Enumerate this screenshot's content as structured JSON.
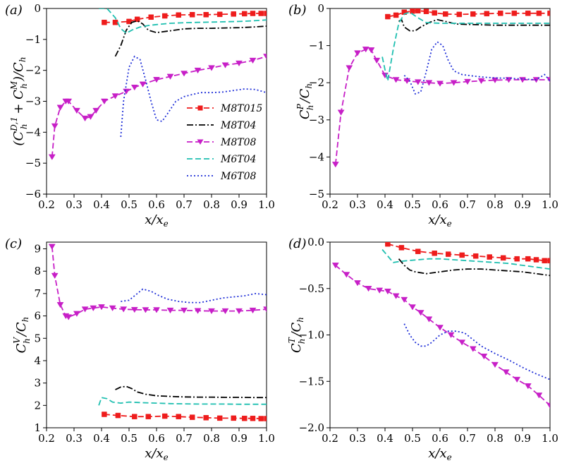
{
  "series_styles": {
    "M8T015": {
      "color": "#ee1c1c",
      "dash": "8,4",
      "marker": "square"
    },
    "M8T04": {
      "color": "#000000",
      "dash": "9,3,2,3",
      "marker": "none"
    },
    "M8T08": {
      "color": "#c71fc7",
      "dash": "8,4",
      "marker": "triangle-down"
    },
    "M6T04": {
      "color": "#1fbfb0",
      "dash": "8,4",
      "marker": "none"
    },
    "M6T08": {
      "color": "#1f2fd8",
      "dash": "2,3",
      "marker": "none"
    }
  },
  "legend": [
    "M8T015",
    "M8T04",
    "M8T08",
    "M6T04",
    "M6T08"
  ],
  "chart_data": [
    {
      "type": "line",
      "panel": "(a)",
      "xlabel": "x/x_e",
      "ylabel": "(C_h^{D,1} + C_h^{M})/C_h",
      "xlim": [
        0.2,
        1.0
      ],
      "ylim": [
        -6,
        0
      ],
      "xticks": [
        "0.2",
        "0.3",
        "0.4",
        "0.5",
        "0.6",
        "0.7",
        "0.8",
        "0.9",
        "1.0"
      ],
      "yticks": [
        "−6",
        "−5",
        "−4",
        "−3",
        "−2",
        "−1",
        "0"
      ],
      "legend_position": "center-right",
      "series": [
        {
          "name": "M8T015",
          "x": [
            0.41,
            0.45,
            0.5,
            0.53,
            0.58,
            0.63,
            0.68,
            0.73,
            0.78,
            0.83,
            0.88,
            0.92,
            0.95,
            0.98,
            1.0
          ],
          "y": [
            -0.45,
            -0.45,
            -0.42,
            -0.35,
            -0.28,
            -0.24,
            -0.21,
            -0.2,
            -0.2,
            -0.19,
            -0.18,
            -0.17,
            -0.16,
            -0.16,
            -0.16
          ]
        },
        {
          "name": "M8T04",
          "x": [
            0.45,
            0.47,
            0.49,
            0.51,
            0.53,
            0.55,
            0.57,
            0.6,
            0.65,
            0.7,
            0.75,
            0.8,
            0.85,
            0.9,
            0.95,
            1.0
          ],
          "y": [
            -1.55,
            -1.2,
            -0.7,
            -0.45,
            -0.4,
            -0.5,
            -0.7,
            -0.78,
            -0.72,
            -0.66,
            -0.64,
            -0.64,
            -0.63,
            -0.62,
            -0.6,
            -0.57
          ]
        },
        {
          "name": "M8T08",
          "x": [
            0.22,
            0.23,
            0.25,
            0.27,
            0.28,
            0.31,
            0.34,
            0.36,
            0.38,
            0.41,
            0.45,
            0.49,
            0.52,
            0.55,
            0.6,
            0.65,
            0.7,
            0.75,
            0.8,
            0.85,
            0.9,
            0.95,
            1.0
          ],
          "y": [
            -4.8,
            -3.8,
            -3.2,
            -3.0,
            -3.0,
            -3.3,
            -3.55,
            -3.5,
            -3.3,
            -3.0,
            -2.83,
            -2.68,
            -2.55,
            -2.45,
            -2.3,
            -2.2,
            -2.1,
            -2.0,
            -1.92,
            -1.83,
            -1.77,
            -1.68,
            -1.55
          ]
        },
        {
          "name": "M6T04",
          "x": [
            0.39,
            0.42,
            0.45,
            0.47,
            0.49,
            0.51,
            0.54,
            0.57,
            0.6,
            0.65,
            0.7,
            0.75,
            0.8,
            0.85,
            0.9,
            0.95,
            1.0
          ],
          "y": [
            0.0,
            0.0,
            -0.3,
            -0.65,
            -0.8,
            -0.7,
            -0.6,
            -0.55,
            -0.52,
            -0.48,
            -0.46,
            -0.45,
            -0.44,
            -0.43,
            -0.42,
            -0.4,
            -0.37
          ]
        },
        {
          "name": "M6T08",
          "x": [
            0.47,
            0.48,
            0.5,
            0.52,
            0.54,
            0.56,
            0.58,
            0.6,
            0.62,
            0.64,
            0.67,
            0.7,
            0.73,
            0.76,
            0.8,
            0.84,
            0.88,
            0.92,
            0.96,
            1.0
          ],
          "y": [
            -4.15,
            -3.0,
            -1.9,
            -1.55,
            -1.65,
            -2.3,
            -3.0,
            -3.6,
            -3.65,
            -3.4,
            -3.0,
            -2.85,
            -2.78,
            -2.72,
            -2.72,
            -2.7,
            -2.65,
            -2.6,
            -2.62,
            -2.72
          ]
        }
      ]
    },
    {
      "type": "line",
      "panel": "(b)",
      "xlabel": "x/x_e",
      "ylabel": "C_h^{P}/C_h",
      "xlim": [
        0.2,
        1.0
      ],
      "ylim": [
        -5,
        0
      ],
      "xticks": [
        "0.2",
        "0.3",
        "0.4",
        "0.5",
        "0.6",
        "0.7",
        "0.8",
        "0.9",
        "1.0"
      ],
      "yticks": [
        "−5",
        "−4",
        "−3",
        "−2",
        "−1",
        "0"
      ],
      "series": [
        {
          "name": "M8T015",
          "x": [
            0.41,
            0.44,
            0.47,
            0.5,
            0.52,
            0.55,
            0.58,
            0.62,
            0.67,
            0.72,
            0.77,
            0.82,
            0.87,
            0.92,
            0.96,
            1.0
          ],
          "y": [
            -0.22,
            -0.18,
            -0.1,
            -0.07,
            -0.06,
            -0.08,
            -0.12,
            -0.15,
            -0.16,
            -0.15,
            -0.14,
            -0.13,
            -0.13,
            -0.13,
            -0.13,
            -0.13
          ]
        },
        {
          "name": "M8T04",
          "x": [
            0.45,
            0.46,
            0.47,
            0.49,
            0.51,
            0.53,
            0.56,
            0.59,
            0.62,
            0.66,
            0.7,
            0.75,
            0.8,
            0.85,
            0.9,
            0.95,
            1.0
          ],
          "y": [
            -0.35,
            -0.3,
            -0.5,
            -0.6,
            -0.6,
            -0.5,
            -0.38,
            -0.3,
            -0.35,
            -0.42,
            -0.43,
            -0.44,
            -0.45,
            -0.45,
            -0.45,
            -0.45,
            -0.45
          ]
        },
        {
          "name": "M8T08",
          "x": [
            0.22,
            0.24,
            0.27,
            0.3,
            0.33,
            0.35,
            0.37,
            0.4,
            0.44,
            0.48,
            0.52,
            0.56,
            0.6,
            0.65,
            0.7,
            0.75,
            0.8,
            0.85,
            0.9,
            0.95,
            1.0
          ],
          "y": [
            -4.2,
            -2.8,
            -1.6,
            -1.2,
            -1.1,
            -1.12,
            -1.4,
            -1.8,
            -1.92,
            -1.95,
            -1.98,
            -2.0,
            -2.02,
            -2.0,
            -1.97,
            -1.95,
            -1.93,
            -1.92,
            -1.92,
            -1.92,
            -1.92
          ]
        },
        {
          "name": "M6T04",
          "x": [
            0.39,
            0.4,
            0.41,
            0.43,
            0.45,
            0.47,
            0.49,
            0.52,
            0.55,
            0.6,
            0.65,
            0.7,
            0.75,
            0.8,
            0.85,
            0.9,
            0.95,
            1.0
          ],
          "y": [
            -1.3,
            -1.65,
            -1.95,
            -1.1,
            -0.4,
            -0.15,
            -0.1,
            -0.25,
            -0.38,
            -0.4,
            -0.4,
            -0.4,
            -0.4,
            -0.4,
            -0.4,
            -0.4,
            -0.4,
            -0.4
          ]
        },
        {
          "name": "M6T08",
          "x": [
            0.47,
            0.49,
            0.51,
            0.53,
            0.55,
            0.57,
            0.59,
            0.61,
            0.63,
            0.65,
            0.68,
            0.72,
            0.76,
            0.8,
            0.85,
            0.9,
            0.95,
            0.98,
            1.0
          ],
          "y": [
            -1.8,
            -1.95,
            -2.3,
            -2.25,
            -1.7,
            -1.1,
            -0.9,
            -1.0,
            -1.4,
            -1.68,
            -1.78,
            -1.82,
            -1.85,
            -1.87,
            -1.88,
            -1.9,
            -1.92,
            -1.78,
            -1.95
          ]
        }
      ]
    },
    {
      "type": "line",
      "panel": "(c)",
      "xlabel": "x/x_e",
      "ylabel": "C_h^{V}/C_h",
      "xlim": [
        0.2,
        1.0
      ],
      "ylim": [
        1,
        9.3
      ],
      "xticks": [
        "0.2",
        "0.3",
        "0.4",
        "0.5",
        "0.6",
        "0.7",
        "0.8",
        "0.9",
        "1.0"
      ],
      "yticks": [
        "1",
        "2",
        "3",
        "4",
        "5",
        "6",
        "7",
        "8",
        "9"
      ],
      "series": [
        {
          "name": "M8T015",
          "x": [
            0.41,
            0.46,
            0.52,
            0.57,
            0.63,
            0.68,
            0.73,
            0.78,
            0.83,
            0.88,
            0.92,
            0.95,
            0.98,
            1.0
          ],
          "y": [
            1.6,
            1.55,
            1.5,
            1.5,
            1.52,
            1.5,
            1.47,
            1.45,
            1.43,
            1.43,
            1.42,
            1.42,
            1.41,
            1.41
          ]
        },
        {
          "name": "M8T04",
          "x": [
            0.45,
            0.47,
            0.49,
            0.51,
            0.53,
            0.56,
            0.6,
            0.65,
            0.7,
            0.75,
            0.8,
            0.85,
            0.9,
            0.95,
            1.0
          ],
          "y": [
            2.7,
            2.82,
            2.85,
            2.75,
            2.6,
            2.5,
            2.43,
            2.4,
            2.38,
            2.37,
            2.37,
            2.36,
            2.36,
            2.35,
            2.35
          ]
        },
        {
          "name": "M8T08",
          "x": [
            0.22,
            0.23,
            0.25,
            0.27,
            0.28,
            0.31,
            0.34,
            0.37,
            0.4,
            0.44,
            0.48,
            0.52,
            0.56,
            0.6,
            0.65,
            0.7,
            0.75,
            0.8,
            0.85,
            0.9,
            0.95,
            1.0
          ],
          "y": [
            9.1,
            7.8,
            6.5,
            6.0,
            5.95,
            6.1,
            6.3,
            6.35,
            6.4,
            6.35,
            6.3,
            6.28,
            6.27,
            6.27,
            6.25,
            6.25,
            6.23,
            6.22,
            6.22,
            6.22,
            6.25,
            6.3
          ]
        },
        {
          "name": "M6T04",
          "x": [
            0.39,
            0.4,
            0.42,
            0.44,
            0.47,
            0.5,
            0.55,
            0.6,
            0.65,
            0.7,
            0.75,
            0.8,
            0.85,
            0.9,
            0.95,
            1.0
          ],
          "y": [
            2.0,
            2.35,
            2.3,
            2.15,
            2.1,
            2.15,
            2.12,
            2.1,
            2.08,
            2.07,
            2.06,
            2.06,
            2.06,
            2.05,
            2.05,
            2.05
          ]
        },
        {
          "name": "M6T08",
          "x": [
            0.47,
            0.5,
            0.53,
            0.55,
            0.58,
            0.61,
            0.64,
            0.68,
            0.72,
            0.76,
            0.8,
            0.84,
            0.88,
            0.92,
            0.96,
            1.0
          ],
          "y": [
            6.65,
            6.7,
            7.0,
            7.2,
            7.1,
            6.9,
            6.75,
            6.65,
            6.6,
            6.6,
            6.7,
            6.8,
            6.85,
            6.9,
            7.0,
            6.95
          ]
        }
      ]
    },
    {
      "type": "line",
      "panel": "(d)",
      "xlabel": "x/x_e",
      "ylabel": "C_h^{T}/C_h",
      "xlim": [
        0.2,
        1.0
      ],
      "ylim": [
        -2.0,
        0.0
      ],
      "xticks": [
        "0.2",
        "0.3",
        "0.4",
        "0.5",
        "0.6",
        "0.7",
        "0.8",
        "0.9",
        "1.0"
      ],
      "yticks": [
        "−2.0",
        "−1.5",
        "−1.0",
        "−0.5",
        "0.0"
      ],
      "series": [
        {
          "name": "M8T015",
          "x": [
            0.41,
            0.46,
            0.52,
            0.58,
            0.63,
            0.68,
            0.73,
            0.78,
            0.83,
            0.88,
            0.92,
            0.95,
            0.98,
            1.0
          ],
          "y": [
            -0.02,
            -0.06,
            -0.1,
            -0.12,
            -0.13,
            -0.14,
            -0.15,
            -0.16,
            -0.17,
            -0.18,
            -0.18,
            -0.19,
            -0.2,
            -0.2
          ]
        },
        {
          "name": "M8T04",
          "x": [
            0.45,
            0.47,
            0.49,
            0.51,
            0.55,
            0.6,
            0.65,
            0.7,
            0.75,
            0.8,
            0.85,
            0.9,
            0.95,
            1.0
          ],
          "y": [
            -0.18,
            -0.25,
            -0.3,
            -0.32,
            -0.34,
            -0.32,
            -0.3,
            -0.29,
            -0.29,
            -0.3,
            -0.31,
            -0.32,
            -0.34,
            -0.36
          ]
        },
        {
          "name": "M8T08",
          "x": [
            0.22,
            0.26,
            0.3,
            0.34,
            0.38,
            0.41,
            0.44,
            0.47,
            0.5,
            0.53,
            0.56,
            0.6,
            0.64,
            0.68,
            0.72,
            0.76,
            0.8,
            0.84,
            0.88,
            0.92,
            0.96,
            1.0
          ],
          "y": [
            -0.25,
            -0.35,
            -0.44,
            -0.5,
            -0.52,
            -0.53,
            -0.58,
            -0.62,
            -0.7,
            -0.76,
            -0.83,
            -0.92,
            -1.0,
            -1.08,
            -1.15,
            -1.23,
            -1.32,
            -1.4,
            -1.48,
            -1.55,
            -1.65,
            -1.76
          ]
        },
        {
          "name": "M6T04",
          "x": [
            0.39,
            0.41,
            0.43,
            0.45,
            0.48,
            0.52,
            0.56,
            0.6,
            0.65,
            0.7,
            0.75,
            0.8,
            0.85,
            0.9,
            0.95,
            1.0
          ],
          "y": [
            -0.08,
            -0.15,
            -0.22,
            -0.21,
            -0.2,
            -0.19,
            -0.18,
            -0.18,
            -0.19,
            -0.2,
            -0.21,
            -0.22,
            -0.23,
            -0.25,
            -0.27,
            -0.29
          ]
        },
        {
          "name": "M6T08",
          "x": [
            0.47,
            0.49,
            0.51,
            0.53,
            0.55,
            0.57,
            0.6,
            0.63,
            0.66,
            0.69,
            0.72,
            0.75,
            0.8,
            0.85,
            0.9,
            0.95,
            1.0
          ],
          "y": [
            -0.88,
            -1.0,
            -1.08,
            -1.12,
            -1.12,
            -1.08,
            -1.0,
            -0.96,
            -0.96,
            -0.98,
            -1.05,
            -1.12,
            -1.2,
            -1.27,
            -1.35,
            -1.42,
            -1.48
          ]
        }
      ]
    }
  ]
}
